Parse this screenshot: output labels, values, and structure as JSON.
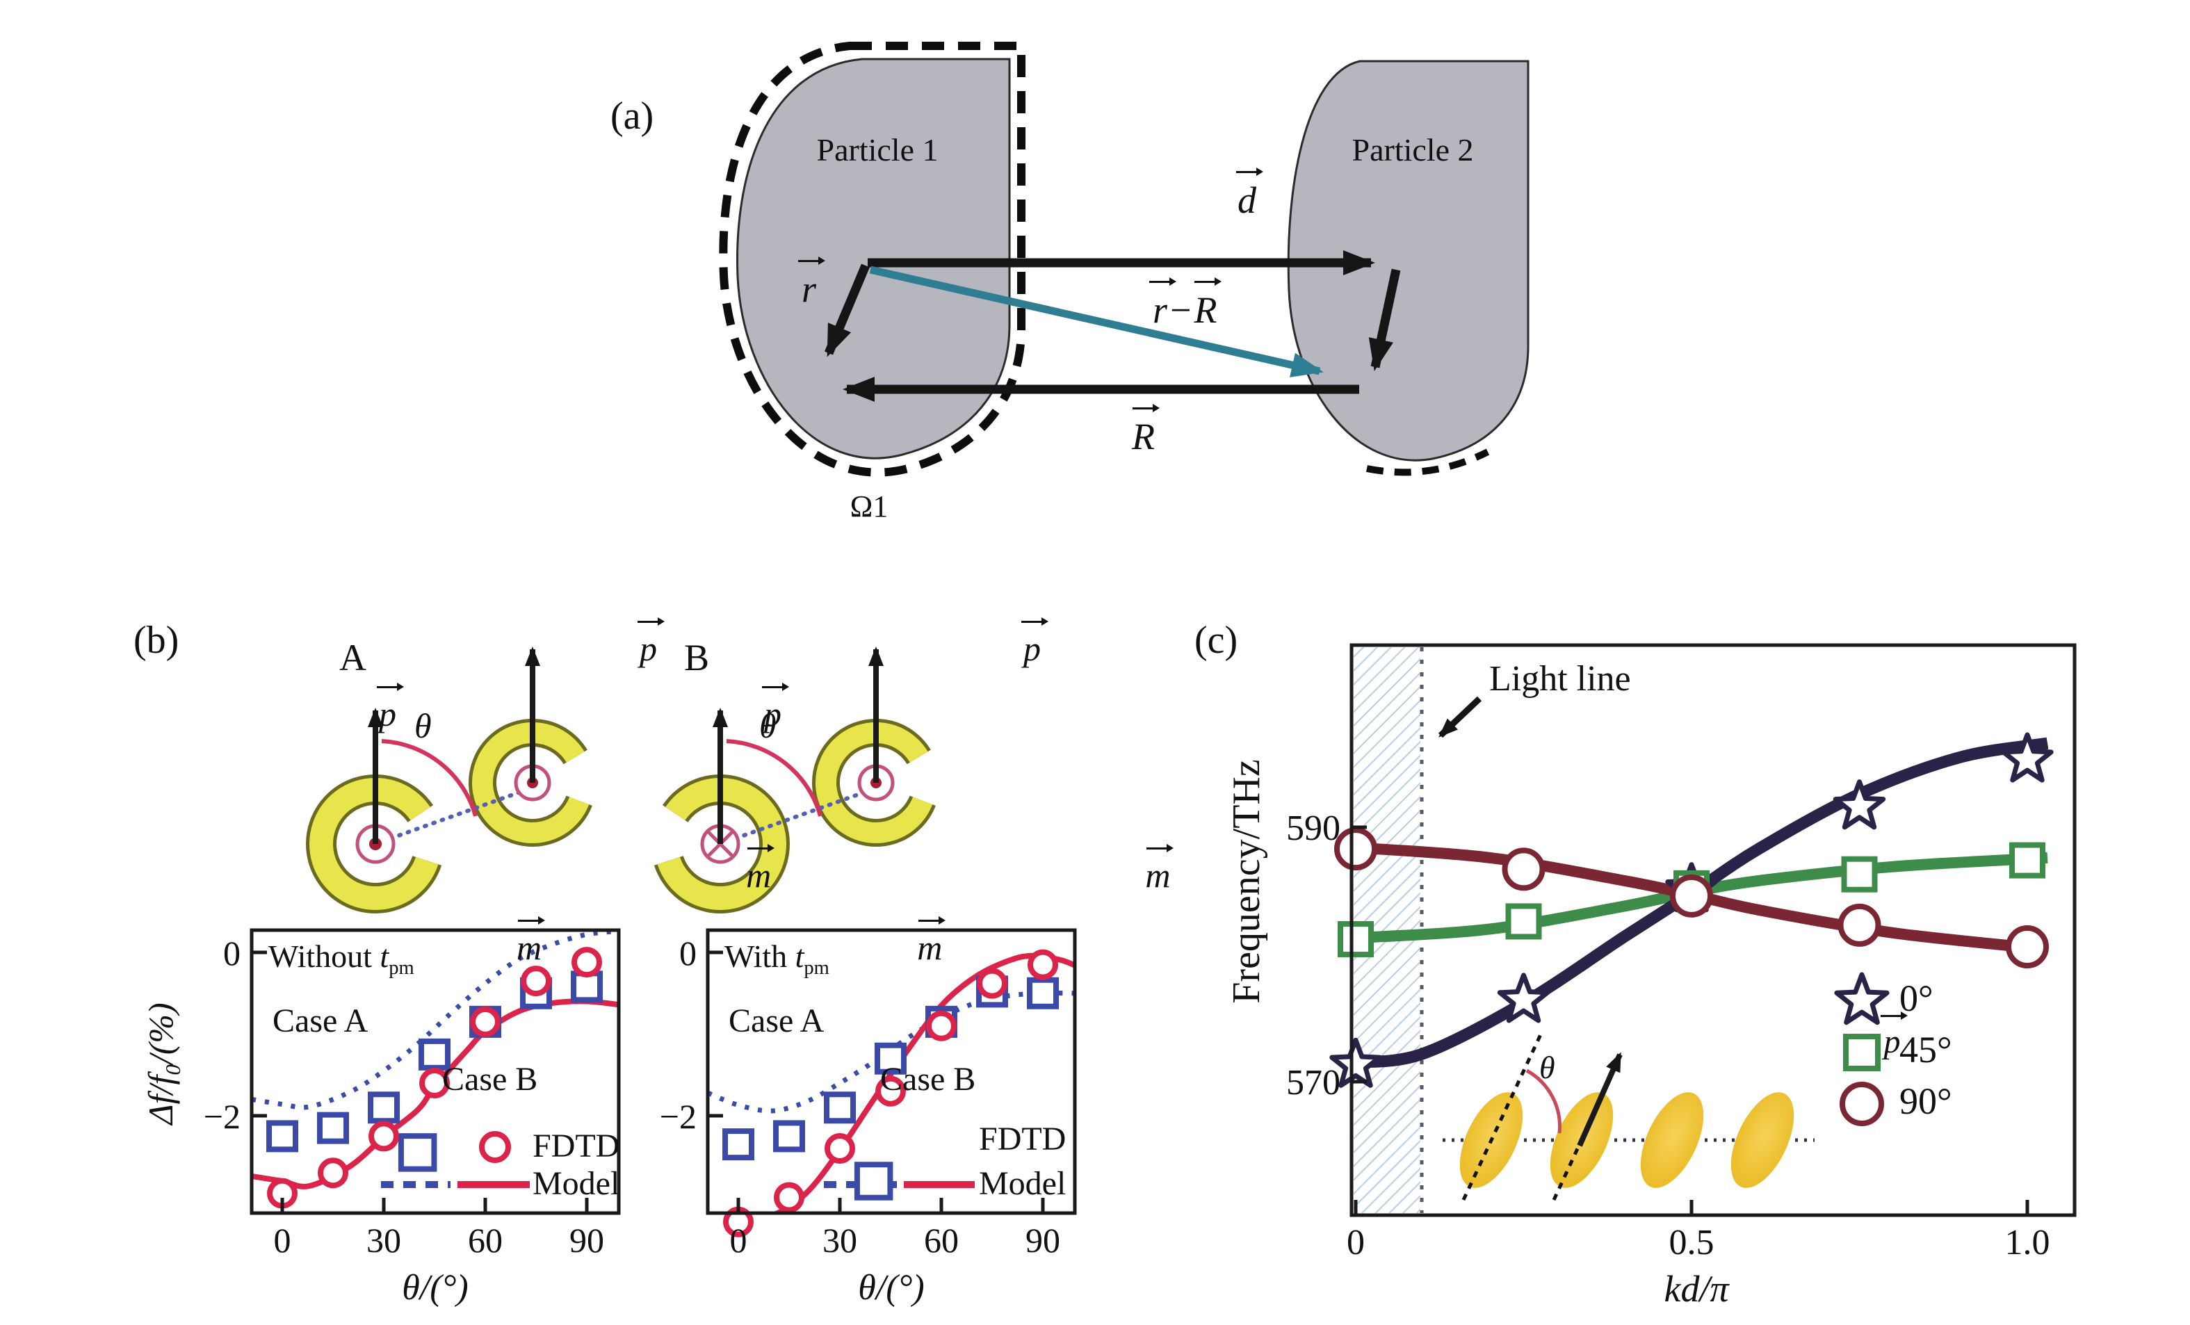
{
  "panel_a": {
    "label": "(a)",
    "particle1_label": "Particle 1",
    "particle2_label": "Particle 2",
    "omega_label": "Ω1",
    "vec_d": "d",
    "vec_r": "r",
    "vec_r2": "r",
    "minus": "−",
    "vec_R2": "R",
    "vec_R": "R"
  },
  "panel_b": {
    "label": "(b)",
    "config_a_label": "A",
    "config_b_label": "B",
    "theta": "θ",
    "p": "p",
    "m": "m"
  },
  "panel_c": {
    "label": "(c)",
    "light_line_label": "Light line",
    "theta": "θ",
    "p": "p"
  },
  "plot_without": {
    "title_prefix": "Without ",
    "title_var": "t",
    "title_sub": "pm",
    "case_a": "Case A",
    "case_b": "Case B",
    "legend_fdtd": "FDTD",
    "legend_model": "Model",
    "ylabel_a": "Δf/f",
    "ylabel_sub": "0",
    "ylabel_b": "/(%)",
    "xlabel": "θ/(°)"
  },
  "plot_with": {
    "title_prefix": "With ",
    "title_var": "t",
    "title_sub": "pm",
    "case_a": "Case A",
    "case_b": "Case B",
    "legend_fdtd": "FDTD",
    "legend_model": "Model",
    "xlabel": "θ/(°)"
  },
  "chart_data": [
    {
      "type": "line",
      "title": "Without tpm",
      "xlabel": "θ/(°)",
      "ylabel": "Δf/f0/(%)",
      "xlim": [
        -9,
        99.5
      ],
      "ylim": [
        -3.2,
        0.27
      ],
      "xticks": [
        [
          0,
          "0"
        ],
        [
          30,
          "30"
        ],
        [
          60,
          "60"
        ],
        [
          90,
          "90"
        ]
      ],
      "yticks": [
        [
          0,
          "0"
        ],
        [
          -2,
          "−2"
        ]
      ],
      "annotations": [
        "Case A",
        "Case B"
      ],
      "legend": {
        "fdtd": "FDTD",
        "model": "Model"
      },
      "series": [
        {
          "name": "case-a-model",
          "style": "dashed",
          "color": "#3b4aa8",
          "width": 7,
          "points": [
            [
              -9,
              -1.8
            ],
            [
              0,
              -1.86
            ],
            [
              8,
              -1.89
            ],
            [
              20,
              -1.71
            ],
            [
              30,
              -1.45
            ],
            [
              40,
              -1.12
            ],
            [
              50,
              -0.74
            ],
            [
              60,
              -0.38
            ],
            [
              70,
              -0.08
            ],
            [
              80,
              0.1
            ],
            [
              90,
              0.22
            ],
            [
              99.5,
              0.26
            ]
          ]
        },
        {
          "name": "case-b-model",
          "style": "solid",
          "color": "#dc2349",
          "width": 8,
          "points": [
            [
              -9,
              -2.74
            ],
            [
              0,
              -2.8
            ],
            [
              8,
              -2.86
            ],
            [
              20,
              -2.62
            ],
            [
              30,
              -2.26
            ],
            [
              40,
              -1.93
            ],
            [
              45,
              -1.65
            ],
            [
              55,
              -1.18
            ],
            [
              60,
              -0.97
            ],
            [
              70,
              -0.72
            ],
            [
              80,
              -0.62
            ],
            [
              90,
              -0.6
            ],
            [
              99.5,
              -0.64
            ]
          ]
        },
        {
          "name": "case-a-fdtd",
          "style": "squares",
          "color": "#3b4aa8",
          "size": 38,
          "sw": 8,
          "points": [
            [
              0,
              -2.25
            ],
            [
              15,
              -2.15
            ],
            [
              30,
              -1.9
            ],
            [
              40,
              -2.45,
              1.25
            ],
            [
              45,
              -1.25
            ],
            [
              60,
              -0.85
            ],
            [
              75,
              -0.5
            ],
            [
              90,
              -0.42
            ]
          ]
        },
        {
          "name": "case-b-fdtd",
          "style": "circles",
          "color": "#dc2349",
          "size": 18,
          "sw": 8,
          "points": [
            [
              0,
              -2.95
            ],
            [
              15,
              -2.7
            ],
            [
              30,
              -2.25
            ],
            [
              45,
              -1.6
            ],
            [
              60,
              -0.85
            ],
            [
              75,
              -0.35
            ],
            [
              90,
              -0.12
            ]
          ]
        }
      ]
    },
    {
      "type": "line",
      "title": "With tpm",
      "xlabel": "θ/(°)",
      "ylabel": "Δf/f0/(%)",
      "xlim": [
        -9,
        99.5
      ],
      "ylim": [
        -3.2,
        0.27
      ],
      "xticks": [
        [
          0,
          "0"
        ],
        [
          30,
          "30"
        ],
        [
          60,
          "60"
        ],
        [
          90,
          "90"
        ]
      ],
      "yticks": [
        [
          0,
          "0"
        ],
        [
          -2,
          "−2"
        ]
      ],
      "annotations": [
        "Case A",
        "Case B"
      ],
      "legend": {
        "fdtd": "FDTD",
        "model": "Model"
      },
      "series": [
        {
          "name": "case-a-model",
          "style": "dashed",
          "color": "#3b4aa8",
          "width": 7,
          "points": [
            [
              -9,
              -1.72
            ],
            [
              0,
              -1.87
            ],
            [
              10,
              -1.94
            ],
            [
              20,
              -1.83
            ],
            [
              30,
              -1.6
            ],
            [
              40,
              -1.34
            ],
            [
              50,
              -1.05
            ],
            [
              60,
              -0.8
            ],
            [
              70,
              -0.62
            ],
            [
              80,
              -0.53
            ],
            [
              90,
              -0.5
            ],
            [
              99.5,
              -0.5
            ]
          ]
        },
        {
          "name": "case-b-model",
          "style": "solid",
          "color": "#dc2349",
          "width": 8,
          "points": [
            [
              -9,
              -3.22
            ],
            [
              0,
              -3.26
            ],
            [
              10,
              -3.22
            ],
            [
              20,
              -2.95
            ],
            [
              30,
              -2.42
            ],
            [
              40,
              -1.8
            ],
            [
              50,
              -1.2
            ],
            [
              60,
              -0.65
            ],
            [
              70,
              -0.3
            ],
            [
              80,
              -0.1
            ],
            [
              87,
              -0.04
            ],
            [
              95,
              -0.09
            ],
            [
              99.5,
              -0.16
            ]
          ]
        },
        {
          "name": "case-a-fdtd",
          "style": "squares",
          "color": "#3b4aa8",
          "size": 38,
          "sw": 8,
          "points": [
            [
              0,
              -2.35
            ],
            [
              15,
              -2.25
            ],
            [
              30,
              -1.9
            ],
            [
              40,
              -2.8,
              1.25
            ],
            [
              45,
              -1.3
            ],
            [
              60,
              -0.85
            ],
            [
              75,
              -0.48
            ],
            [
              90,
              -0.5
            ]
          ]
        },
        {
          "name": "case-b-fdtd",
          "style": "circles",
          "color": "#dc2349",
          "size": 18,
          "sw": 8,
          "points": [
            [
              0,
              -3.3
            ],
            [
              15,
              -3.0
            ],
            [
              30,
              -2.4
            ],
            [
              45,
              -1.7
            ],
            [
              60,
              -0.9
            ],
            [
              75,
              -0.38
            ],
            [
              90,
              -0.15
            ]
          ]
        }
      ]
    },
    {
      "type": "line",
      "title": "",
      "xlabel": "kd/π",
      "ylabel": "Frequency/THz",
      "xlim": [
        -0.006,
        1.07
      ],
      "ylim": [
        559.5,
        604.2
      ],
      "xticks": [
        [
          0,
          "0"
        ],
        [
          0.5,
          "0.5"
        ],
        [
          1.0,
          "1.0"
        ]
      ],
      "yticks": [
        [
          590,
          "590"
        ],
        [
          570,
          "570"
        ]
      ],
      "light_line": {
        "label": "Light line",
        "x": 0.1
      },
      "legend": [
        {
          "label": "0°",
          "marker": "star",
          "color": "#2a2347"
        },
        {
          "label": "45°",
          "marker": "square",
          "color": "#3e8c4a"
        },
        {
          "label": "90°",
          "marker": "circle",
          "color": "#7b2733"
        }
      ],
      "series": [
        {
          "name": "45deg-model",
          "style": "solid",
          "color": "#3e8c4a",
          "width": 16,
          "points": [
            [
              0,
              581.3
            ],
            [
              0.2,
              582.0
            ],
            [
              0.4,
              583.8
            ],
            [
              0.5,
              584.9
            ],
            [
              0.6,
              585.8
            ],
            [
              0.8,
              586.9
            ],
            [
              1.03,
              587.6
            ]
          ]
        },
        {
          "name": "90deg-model",
          "style": "solid",
          "color": "#7b2733",
          "width": 16,
          "points": [
            [
              0,
              588.4
            ],
            [
              0.2,
              587.6
            ],
            [
              0.4,
              585.8
            ],
            [
              0.5,
              584.7
            ],
            [
              0.6,
              583.5
            ],
            [
              0.8,
              581.7
            ],
            [
              1.03,
              580.4
            ]
          ]
        },
        {
          "name": "0deg-model",
          "style": "solid",
          "color": "#2a2347",
          "width": 17,
          "points": [
            [
              0,
              571.5
            ],
            [
              0.1,
              572.2
            ],
            [
              0.25,
              576.2
            ],
            [
              0.4,
              581.4
            ],
            [
              0.5,
              584.8
            ],
            [
              0.6,
              588.3
            ],
            [
              0.75,
              592.6
            ],
            [
              0.9,
              595.5
            ],
            [
              1.03,
              596.6
            ]
          ]
        },
        {
          "name": "0deg-data",
          "style": "stars",
          "color": "#2a2347",
          "size": 36,
          "sw": 7,
          "points": [
            [
              0,
              571.3
            ],
            [
              0.25,
              576.4
            ],
            [
              0.5,
              585.1
            ],
            [
              0.75,
              591.6
            ],
            [
              1.0,
              595.3
            ]
          ]
        },
        {
          "name": "45deg-data",
          "style": "squares",
          "color": "#3e8c4a",
          "size": 44,
          "sw": 8,
          "points": [
            [
              0,
              581.2
            ],
            [
              0.25,
              582.6
            ],
            [
              0.5,
              585.2
            ],
            [
              0.75,
              586.3
            ],
            [
              1.0,
              587.4
            ]
          ]
        },
        {
          "name": "90deg-data",
          "style": "circles",
          "color": "#7b2733",
          "size": 27,
          "sw": 8,
          "points": [
            [
              0,
              588.3
            ],
            [
              0.25,
              586.7
            ],
            [
              0.5,
              584.6
            ],
            [
              0.75,
              582.3
            ],
            [
              1.0,
              580.6
            ]
          ]
        }
      ]
    }
  ]
}
